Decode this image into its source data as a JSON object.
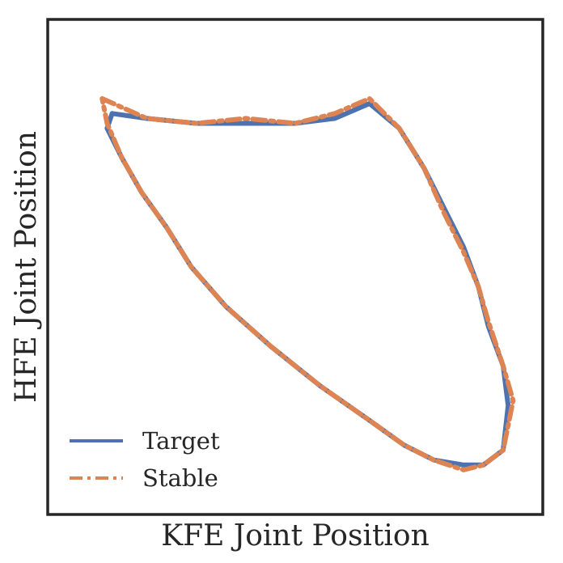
{
  "chart_data": {
    "type": "line",
    "title": "",
    "xlabel": "KFE Joint Position",
    "ylabel": "HFE Joint Position",
    "xlim": [
      0,
      1
    ],
    "ylim": [
      0,
      1
    ],
    "xticks": [],
    "yticks": [],
    "grid": false,
    "legend": {
      "position": "lower-left"
    },
    "series": [
      {
        "name": "Target",
        "style": "solid",
        "color": "#4C72B0",
        "x": [
          0.13,
          0.2,
          0.3,
          0.4,
          0.5,
          0.58,
          0.65,
          0.71,
          0.76,
          0.8,
          0.84,
          0.87,
          0.89,
          0.92,
          0.93,
          0.92,
          0.88,
          0.84,
          0.78,
          0.72,
          0.65,
          0.55,
          0.45,
          0.36,
          0.29,
          0.24,
          0.19,
          0.15,
          0.12,
          0.13
        ],
        "y": [
          0.81,
          0.8,
          0.79,
          0.79,
          0.79,
          0.8,
          0.83,
          0.78,
          0.7,
          0.62,
          0.54,
          0.46,
          0.38,
          0.3,
          0.22,
          0.13,
          0.1,
          0.1,
          0.11,
          0.14,
          0.19,
          0.26,
          0.34,
          0.42,
          0.5,
          0.58,
          0.65,
          0.72,
          0.78,
          0.81
        ]
      },
      {
        "name": "Stable",
        "style": "dashdot",
        "color": "#DD8452",
        "x": [
          0.11,
          0.2,
          0.3,
          0.4,
          0.5,
          0.58,
          0.65,
          0.71,
          0.76,
          0.8,
          0.84,
          0.87,
          0.89,
          0.92,
          0.94,
          0.92,
          0.88,
          0.84,
          0.78,
          0.72,
          0.65,
          0.55,
          0.45,
          0.36,
          0.29,
          0.24,
          0.19,
          0.15,
          0.12,
          0.11
        ],
        "y": [
          0.84,
          0.8,
          0.79,
          0.8,
          0.79,
          0.81,
          0.84,
          0.78,
          0.7,
          0.61,
          0.53,
          0.46,
          0.39,
          0.3,
          0.23,
          0.13,
          0.1,
          0.09,
          0.11,
          0.14,
          0.19,
          0.26,
          0.34,
          0.42,
          0.5,
          0.58,
          0.65,
          0.72,
          0.79,
          0.84
        ]
      }
    ]
  }
}
